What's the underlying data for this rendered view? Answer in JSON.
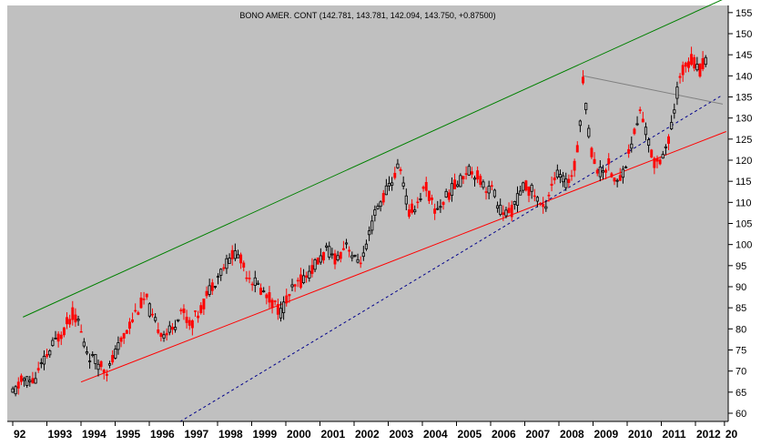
{
  "chart_data": {
    "type": "candlestick",
    "title": "BONO AMER. CONT (142.781, 143.781, 142.094, 143.750, +0.87500)",
    "xlabel": "",
    "ylabel": "",
    "xlim": [
      1992.0,
      2012.9
    ],
    "ylim": [
      58,
      158
    ],
    "y_ticks": [
      "60",
      "65",
      "70",
      "75",
      "80",
      "85",
      "90",
      "95",
      "100",
      "105",
      "110",
      "115",
      "120",
      "125",
      "130",
      "135",
      "140",
      "145",
      "150",
      "155"
    ],
    "x_ticks": [
      {
        "year": 1992,
        "label": "92"
      },
      {
        "year": 1993,
        "label": "1993"
      },
      {
        "year": 1994,
        "label": "1994"
      },
      {
        "year": 1995,
        "label": "1995"
      },
      {
        "year": 1996,
        "label": "1996"
      },
      {
        "year": 1997,
        "label": "1997"
      },
      {
        "year": 1998,
        "label": "1998"
      },
      {
        "year": 1999,
        "label": "1999"
      },
      {
        "year": 2000,
        "label": "2000"
      },
      {
        "year": 2001,
        "label": "2001"
      },
      {
        "year": 2002,
        "label": "2002"
      },
      {
        "year": 2003,
        "label": "2003"
      },
      {
        "year": 2004,
        "label": "2004"
      },
      {
        "year": 2005,
        "label": "2005"
      },
      {
        "year": 2006,
        "label": "2006"
      },
      {
        "year": 2007,
        "label": "2007"
      },
      {
        "year": 2008,
        "label": "2008"
      },
      {
        "year": 2009,
        "label": "2009"
      },
      {
        "year": 2010,
        "label": "2010"
      },
      {
        "year": 2011,
        "label": "2011"
      },
      {
        "year": 2012,
        "label": "2012"
      },
      {
        "year": 2012.85,
        "label": "20"
      }
    ],
    "grid": false,
    "colors": {
      "background": "#c0c0c0",
      "up": "#000000",
      "down": "#ff0000",
      "upper_channel": "#008000",
      "lower_channel": "#ff0000",
      "long_trend": "#00008b",
      "resistance": "#808080"
    },
    "price_path": [
      [
        1992.0,
        64.5
      ],
      [
        1992.3,
        68.0
      ],
      [
        1992.6,
        67.5
      ],
      [
        1992.9,
        72.0
      ],
      [
        1993.2,
        76.5
      ],
      [
        1993.5,
        80.0
      ],
      [
        1993.75,
        83.5
      ],
      [
        1993.9,
        82.5
      ],
      [
        1994.1,
        76.0
      ],
      [
        1994.3,
        73.0
      ],
      [
        1994.6,
        71.5
      ],
      [
        1994.8,
        70.0
      ],
      [
        1995.0,
        74.0
      ],
      [
        1995.3,
        79.0
      ],
      [
        1995.6,
        84.0
      ],
      [
        1995.9,
        87.5
      ],
      [
        1996.1,
        82.0
      ],
      [
        1996.4,
        79.0
      ],
      [
        1996.7,
        79.5
      ],
      [
        1996.9,
        85.0
      ],
      [
        1997.2,
        81.0
      ],
      [
        1997.5,
        84.5
      ],
      [
        1997.8,
        90.0
      ],
      [
        1998.0,
        92.5
      ],
      [
        1998.3,
        96.0
      ],
      [
        1998.55,
        98.5
      ],
      [
        1998.8,
        94.0
      ],
      [
        1999.0,
        92.0
      ],
      [
        1999.3,
        89.0
      ],
      [
        1999.6,
        86.5
      ],
      [
        1999.85,
        84.0
      ],
      [
        2000.1,
        88.0
      ],
      [
        2000.4,
        91.0
      ],
      [
        2000.7,
        93.5
      ],
      [
        2000.95,
        96.0
      ],
      [
        2001.2,
        98.5
      ],
      [
        2001.5,
        96.5
      ],
      [
        2001.8,
        101.0
      ],
      [
        2002.0,
        96.0
      ],
      [
        2002.3,
        97.0
      ],
      [
        2002.6,
        107.0
      ],
      [
        2002.9,
        112.0
      ],
      [
        2003.1,
        115.0
      ],
      [
        2003.35,
        119.0
      ],
      [
        2003.6,
        107.0
      ],
      [
        2003.85,
        110.0
      ],
      [
        2004.1,
        114.0
      ],
      [
        2004.35,
        108.0
      ],
      [
        2004.6,
        110.0
      ],
      [
        2004.85,
        113.0
      ],
      [
        2005.1,
        115.0
      ],
      [
        2005.3,
        118.0
      ],
      [
        2005.55,
        117.0
      ],
      [
        2005.8,
        114.0
      ],
      [
        2006.05,
        113.0
      ],
      [
        2006.3,
        108.0
      ],
      [
        2006.55,
        107.0
      ],
      [
        2006.8,
        111.0
      ],
      [
        2007.0,
        114.0
      ],
      [
        2007.3,
        112.0
      ],
      [
        2007.55,
        108.0
      ],
      [
        2007.8,
        115.0
      ],
      [
        2008.0,
        117.0
      ],
      [
        2008.2,
        114.0
      ],
      [
        2008.45,
        118.0
      ],
      [
        2008.6,
        127.0
      ],
      [
        2008.72,
        140.0
      ],
      [
        2008.85,
        128.0
      ],
      [
        2009.0,
        120.0
      ],
      [
        2009.2,
        117.0
      ],
      [
        2009.45,
        119.0
      ],
      [
        2009.7,
        114.0
      ],
      [
        2009.95,
        119.0
      ],
      [
        2010.2,
        126.0
      ],
      [
        2010.4,
        132.0
      ],
      [
        2010.6,
        125.0
      ],
      [
        2010.8,
        119.0
      ],
      [
        2011.0,
        121.0
      ],
      [
        2011.25,
        125.0
      ],
      [
        2011.5,
        138.0
      ],
      [
        2011.7,
        143.0
      ],
      [
        2011.9,
        144.0
      ],
      [
        2012.1,
        141.0
      ],
      [
        2012.3,
        143.75
      ]
    ]
  }
}
